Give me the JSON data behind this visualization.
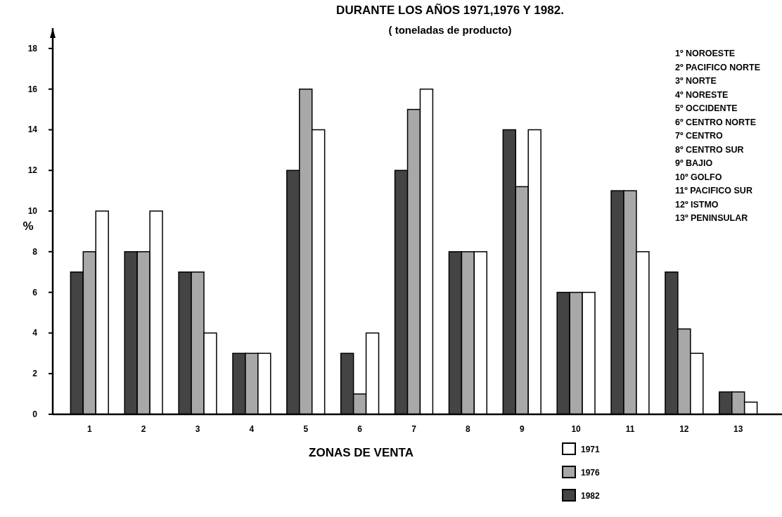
{
  "chart_data": {
    "type": "bar",
    "title": "DURANTE LOS AÑOS 1971,1976 Y 1982.",
    "subtitle": "( toneladas de producto)",
    "xlabel": "ZONAS DE VENTA",
    "ylabel": "%",
    "categories": [
      "1",
      "2",
      "3",
      "4",
      "5",
      "6",
      "7",
      "8",
      "9",
      "10",
      "11",
      "12",
      "13"
    ],
    "series": [
      {
        "name": "1982",
        "color": "#444444",
        "values": [
          7,
          8,
          7,
          3,
          12,
          3,
          12,
          8,
          14,
          6,
          11,
          7,
          1.1
        ]
      },
      {
        "name": "1976",
        "color": "#a8a8a8",
        "values": [
          8,
          8,
          7,
          3,
          16,
          1,
          15,
          8,
          11.2,
          6,
          11,
          4.2,
          1.1
        ]
      },
      {
        "name": "1971",
        "color": "#ffffff",
        "values": [
          10,
          10,
          4,
          3,
          14,
          4,
          16,
          8,
          14,
          6,
          8,
          3,
          0.6
        ]
      }
    ],
    "ylim": [
      0,
      19
    ],
    "yticks": [
      0,
      2,
      4,
      6,
      8,
      10,
      12,
      14,
      16,
      18
    ],
    "grid": false,
    "legend": "bottom right",
    "annotations": [
      "1º NOROESTE",
      "2º PACIFICO NORTE",
      "3º NORTE",
      "4º NORESTE",
      "5º OCCIDENTE",
      "6º CENTRO NORTE",
      "7º CENTRO",
      "8º CENTRO SUR",
      "9º BAJIO",
      "10º GOLFO",
      "11º PACIFICO SUR",
      "12º ISTMO",
      "13º PENINSULAR"
    ]
  }
}
